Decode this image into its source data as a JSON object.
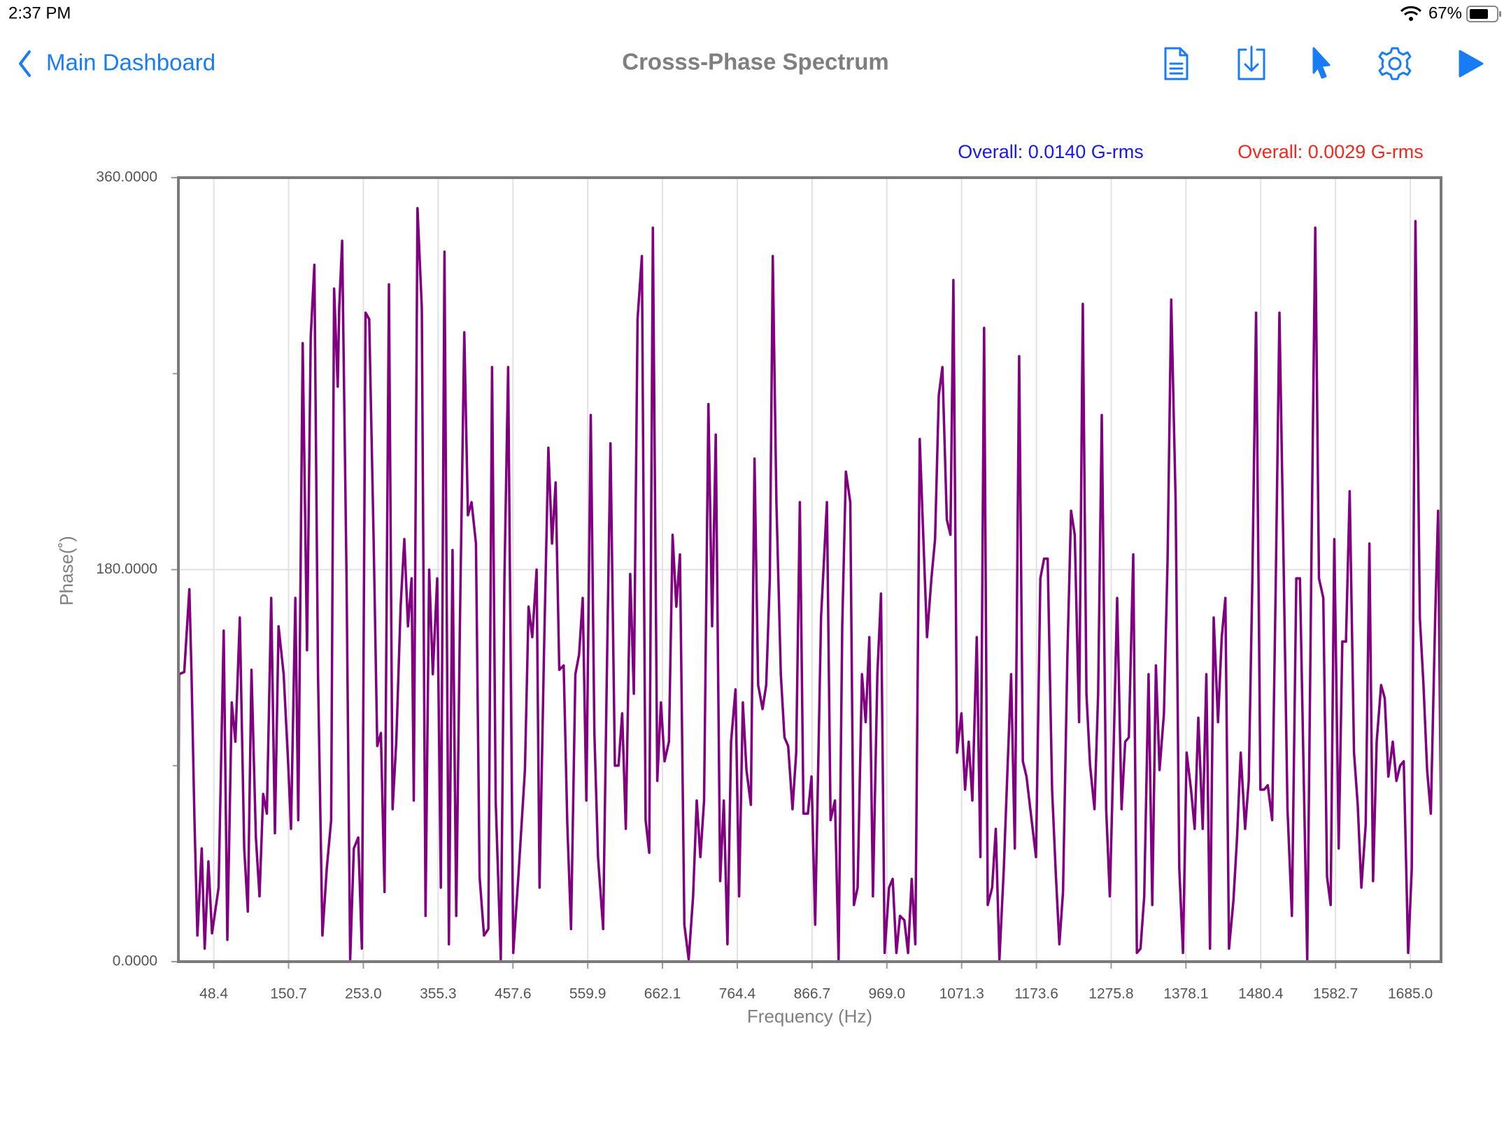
{
  "status": {
    "time": "2:37 PM",
    "battery": "67%"
  },
  "nav": {
    "back": "Main Dashboard",
    "title": "Crosss-Phase Spectrum"
  },
  "chart_data": {
    "type": "line",
    "overall": [
      {
        "text": "Overall: 0.0140 G-rms",
        "color": "#1a1ae6"
      },
      {
        "text": "Overall: 0.0029 G-rms",
        "color": "#f0281e"
      }
    ],
    "xlabel": "Frequency (Hz)",
    "ylabel": "Phase(˚)",
    "xlim": [
      0,
      1727
    ],
    "ylim": [
      0,
      360
    ],
    "xticks": [
      48.4,
      150.7,
      {
        "value": 253,
        "label": "253.0"
      },
      355.3,
      457.6,
      559.9,
      662.1,
      764.4,
      866.7,
      {
        "value": 969,
        "label": "969.0"
      },
      1071.3,
      1173.6,
      1275.8,
      1378.1,
      1480.4,
      1582.7,
      {
        "value": 1685,
        "label": "1685.0"
      }
    ],
    "yticks": [
      {
        "value": 0,
        "label": "0.0000"
      },
      {
        "value": 180,
        "label": "180.0000"
      },
      {
        "value": 360,
        "label": "360.0000"
      }
    ],
    "yminor_ticks": [
      90,
      270
    ],
    "grid": true,
    "series": [
      {
        "name": "Phase",
        "color": "#800080",
        "x": [
          0,
          1,
          8,
          15,
          18,
          22,
          26,
          32,
          36,
          41,
          46,
          55,
          62,
          67,
          73,
          78,
          84,
          90,
          95,
          100,
          106,
          111,
          116,
          121,
          127,
          132,
          137,
          144,
          150,
          154,
          160,
          164,
          170,
          176,
          181,
          186,
          191,
          197,
          203,
          209,
          213,
          218,
          220,
          224,
          230,
          235,
          240,
          246,
          251,
          256,
          261,
          267,
          272,
          277,
          282,
          288,
          293,
          298,
          304,
          309,
          314,
          319,
          322,
          327,
          333,
          338,
          343,
          348,
          354,
          359,
          364,
          370,
          375,
          380,
          385,
          391,
          396,
          401,
          407,
          412,
          418,
          424,
          429,
          434,
          441,
          446,
          451,
          458,
          465,
          474,
          479,
          484,
          490,
          494,
          500,
          506,
          511,
          516,
          521,
          527,
          532,
          537,
          543,
          548,
          553,
          558,
          564,
          569,
          574,
          581,
          586,
          591,
          597,
          602,
          607,
          612,
          618,
          623,
          628,
          634,
          639,
          644,
          649,
          655,
          660,
          665,
          671,
          676,
          681,
          686,
          692,
          698,
          704,
          709,
          714,
          719,
          725,
          730,
          735,
          741,
          746,
          751,
          756,
          762,
          767,
          772,
          777,
          783,
          788,
          793,
          799,
          804,
          809,
          813,
          818,
          824,
          829,
          834,
          840,
          845,
          850,
          855,
          861,
          866,
          871,
          879,
          887,
          892,
          898,
          903,
          908,
          913,
          919,
          924,
          929,
          935,
          940,
          945,
          950,
          956,
          961,
          966,
          972,
          977,
          982,
          987,
          993,
          998,
          1003,
          1008,
          1014,
          1019,
          1024,
          1030,
          1035,
          1040,
          1045,
          1051,
          1056,
          1060,
          1065,
          1071,
          1076,
          1081,
          1086,
          1092,
          1097,
          1102,
          1107,
          1113,
          1118,
          1123,
          1129,
          1134,
          1139,
          1144,
          1150,
          1155,
          1160,
          1167,
          1173,
          1179,
          1184,
          1189,
          1195,
          1200,
          1205,
          1210,
          1216,
          1221,
          1226,
          1232,
          1237,
          1242,
          1247,
          1253,
          1258,
          1263,
          1269,
          1274,
          1279,
          1284,
          1290,
          1295,
          1300,
          1306,
          1311,
          1316,
          1321,
          1327,
          1332,
          1337,
          1342,
          1348,
          1353,
          1358,
          1364,
          1369,
          1374,
          1379,
          1385,
          1390,
          1395,
          1401,
          1406,
          1411,
          1416,
          1422,
          1427,
          1432,
          1437,
          1443,
          1448,
          1453,
          1459,
          1464,
          1469,
          1474,
          1480,
          1485,
          1490,
          1496,
          1501,
          1506,
          1511,
          1517,
          1523,
          1529,
          1534,
          1539,
          1544,
          1550,
          1555,
          1560,
          1566,
          1571,
          1576,
          1581,
          1587,
          1592,
          1597,
          1602,
          1608,
          1613,
          1618,
          1624,
          1629,
          1634,
          1639,
          1645,
          1650,
          1655,
          1661,
          1666,
          1671,
          1676,
          1682,
          1687,
          1692,
          1698,
          1703,
          1708,
          1713,
          1719,
          1723,
          1727
        ],
        "values": [
          57,
          132,
          133,
          171,
          132,
          65,
          12,
          52,
          6,
          46,
          13,
          34,
          152,
          10,
          119,
          101,
          158,
          52,
          23,
          134,
          57,
          30,
          77,
          68,
          167,
          59,
          154,
          132,
          92,
          61,
          167,
          65,
          284,
          143,
          287,
          320,
          132,
          12,
          43,
          65,
          309,
          264,
          300,
          331,
          176,
          1,
          52,
          57,
          6,
          298,
          295,
          194,
          99,
          105,
          32,
          311,
          70,
          101,
          163,
          194,
          154,
          176,
          74,
          346,
          300,
          21,
          180,
          132,
          176,
          34,
          326,
          8,
          189,
          21,
          154,
          289,
          205,
          211,
          192,
          39,
          12,
          15,
          273,
          74,
          1,
          176,
          273,
          4,
          39,
          88,
          163,
          149,
          180,
          34,
          141,
          236,
          192,
          220,
          134,
          136,
          63,
          15,
          132,
          141,
          167,
          74,
          251,
          105,
          48,
          15,
          132,
          238,
          90,
          90,
          114,
          61,
          178,
          123,
          295,
          324,
          65,
          50,
          337,
          83,
          119,
          92,
          101,
          196,
          163,
          187,
          17,
          1,
          30,
          74,
          48,
          74,
          256,
          154,
          242,
          37,
          74,
          8,
          101,
          125,
          30,
          119,
          88,
          72,
          231,
          127,
          116,
          127,
          176,
          324,
          211,
          132,
          103,
          99,
          70,
          96,
          211,
          68,
          68,
          85,
          17,
          158,
          211,
          65,
          74,
          1,
          154,
          225,
          211,
          26,
          34,
          132,
          110,
          149,
          30,
          132,
          169,
          4,
          34,
          38,
          4,
          21,
          19,
          4,
          38,
          8,
          240,
          194,
          149,
          176,
          194,
          260,
          273,
          203,
          196,
          313,
          96,
          114,
          79,
          101,
          74,
          149,
          48,
          291,
          26,
          34,
          61,
          1,
          43,
          88,
          132,
          52,
          278,
          92,
          85,
          65,
          48,
          176,
          185,
          185,
          79,
          41,
          8,
          32,
          141,
          207,
          196,
          110,
          302,
          123,
          90,
          70,
          123,
          251,
          70,
          30,
          96,
          167,
          70,
          101,
          103,
          187,
          4,
          6,
          30,
          132,
          26,
          136,
          88,
          114,
          185,
          304,
          211,
          43,
          4,
          96,
          79,
          61,
          112,
          61,
          132,
          6,
          158,
          110,
          149,
          167,
          6,
          28,
          57,
          96,
          61,
          83,
          176,
          298,
          79,
          79,
          81,
          65,
          176,
          298,
          198,
          70,
          21,
          176,
          176,
          88,
          1,
          194,
          337,
          176,
          167,
          39,
          26,
          194,
          52,
          147,
          147,
          216,
          96,
          72,
          34,
          63,
          192,
          37,
          101,
          127,
          121,
          85,
          101,
          83,
          90,
          92,
          4,
          43,
          340,
          158,
          127,
          88,
          68,
          158,
          207,
          63
        ]
      }
    ]
  }
}
